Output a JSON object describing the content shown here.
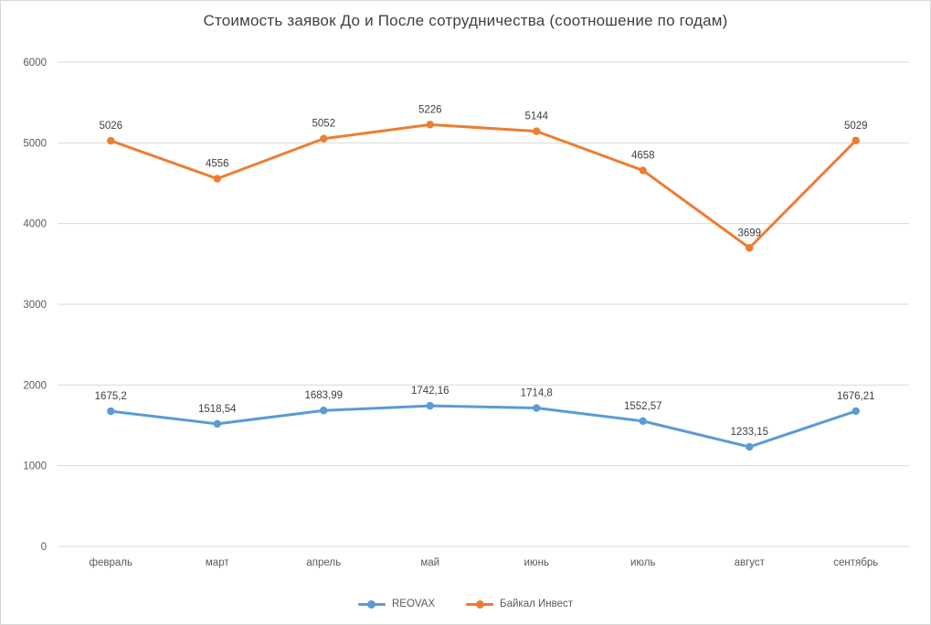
{
  "title": "Стоимость заявок До и После сотрудничества (соотношение по годам)",
  "chart_data": {
    "type": "line",
    "title": "Стоимость заявок До и После сотрудничества (соотношение по годам)",
    "categories": [
      "февраль",
      "март",
      "апрель",
      "май",
      "июнь",
      "июль",
      "август",
      "сентябрь"
    ],
    "series": [
      {
        "name": "REOVAX",
        "color": "#5B9BD5",
        "values": [
          1675.2,
          1518.54,
          1683.99,
          1742.16,
          1714.8,
          1552.57,
          1233.15,
          1676.21
        ],
        "labels": [
          "1675,2",
          "1518,54",
          "1683,99",
          "1742,16",
          "1714,8",
          "1552,57",
          "1233,15",
          "1676,21"
        ]
      },
      {
        "name": "Байкал Инвест",
        "color": "#ED7D31",
        "values": [
          5026,
          4556,
          5052,
          5226,
          5144,
          4658,
          3699,
          5029
        ],
        "labels": [
          "5026",
          "4556",
          "5052",
          "5226",
          "5144",
          "4658",
          "3699",
          "5029"
        ]
      }
    ],
    "xlabel": "",
    "ylabel": "",
    "ylim": [
      0,
      6000
    ],
    "ytick_step": 1000,
    "ytick_labels": [
      "0",
      "1000",
      "2000",
      "3000",
      "4000",
      "5000",
      "6000"
    ],
    "grid": true,
    "legend_position": "bottom"
  },
  "style": {
    "grid_color": "#D9D9D9",
    "axis_text_color": "#595959",
    "data_label_color": "#404040",
    "title_color": "#404040",
    "background": "#FFFFFF"
  }
}
